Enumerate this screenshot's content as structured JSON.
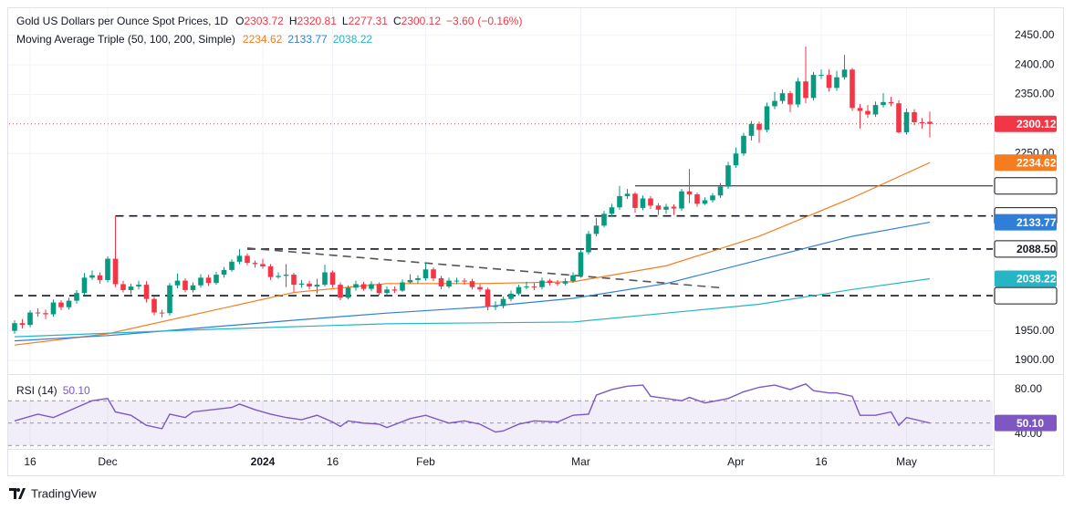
{
  "chart_data": {
    "type": "candlestick",
    "title": "Gold US Dollars per Ounce Spot Prices, 1D",
    "ohlc_prefixes": [
      "O",
      "H",
      "L",
      "C"
    ],
    "change": {
      "value": -3.6,
      "label": "−3.60"
    },
    "change_pct": {
      "value": -0.16,
      "label": "(−0.16%)"
    },
    "up_color": "#089981",
    "down_color": "#f23645",
    "categories": [
      null,
      null,
      "16",
      null,
      null,
      null,
      null,
      null,
      null,
      null,
      null,
      null,
      "Dec",
      null,
      null,
      null,
      null,
      null,
      null,
      null,
      null,
      null,
      null,
      null,
      null,
      null,
      null,
      null,
      null,
      null,
      null,
      null,
      "2024",
      null,
      null,
      null,
      null,
      null,
      null,
      null,
      null,
      "16",
      null,
      null,
      null,
      null,
      null,
      null,
      null,
      null,
      null,
      null,
      null,
      "Feb",
      null,
      null,
      null,
      null,
      null,
      null,
      null,
      null,
      null,
      null,
      null,
      null,
      null,
      null,
      null,
      null,
      null,
      null,
      null,
      "Mar",
      null,
      null,
      null,
      null,
      null,
      null,
      null,
      null,
      null,
      null,
      null,
      null,
      null,
      null,
      null,
      null,
      null,
      null,
      null,
      "Apr",
      null,
      null,
      null,
      null,
      null,
      null,
      null,
      null,
      null,
      null,
      "16",
      null,
      null,
      null,
      null,
      null,
      null,
      null,
      null,
      null,
      null,
      "May",
      null,
      null,
      null
    ],
    "open": [
      1950,
      1963,
      1960,
      1981,
      1980,
      1978,
      1998,
      1990,
      2001,
      2014,
      2040,
      2044,
      2036,
      2072,
      2029,
      2019,
      2025,
      2028,
      2004,
      1981,
      1980,
      2027,
      2035,
      2019,
      2027,
      2040,
      2031,
      2045,
      2053,
      2067,
      2077,
      2065,
      2063,
      2059,
      2041,
      2043,
      2045,
      2028,
      2030,
      2025,
      2028,
      2049,
      2028,
      2006,
      2023,
      2029,
      2021,
      2029,
      2014,
      2020,
      2018,
      2032,
      2036,
      2039,
      2054,
      2039,
      2025,
      2035,
      2035,
      2034,
      2024,
      2020,
      1992,
      1992,
      2004,
      2013,
      2024,
      2025,
      2024,
      2035,
      2031,
      2030,
      2034,
      2044,
      2083,
      2114,
      2128,
      2148,
      2159,
      2178,
      2182,
      2158,
      2174,
      2162,
      2155,
      2160,
      2157,
      2186,
      2181,
      2165,
      2171,
      2179,
      2194,
      2230,
      2250,
      2280,
      2300,
      2290,
      2330,
      2339,
      2352,
      2333,
      2372,
      2344,
      2383,
      2383,
      2361,
      2379,
      2392,
      2327,
      2322,
      2316,
      2332,
      2337,
      2335,
      2286,
      2320,
      2303,
      2303.72
    ],
    "high": [
      1968,
      1970,
      1985,
      1988,
      1986,
      2003,
      2002,
      2006,
      2019,
      2048,
      2052,
      2049,
      2076,
      2144.48,
      2035,
      2030,
      2035,
      2034,
      2008,
      1986,
      2031,
      2047,
      2039,
      2032,
      2046,
      2045,
      2050,
      2058,
      2071,
      2088.5,
      2081,
      2069,
      2072,
      2063,
      2049,
      2063,
      2048,
      2036,
      2035,
      2038,
      2062,
      2052,
      2032,
      2027,
      2035,
      2033,
      2034,
      2032,
      2025,
      2025,
      2037,
      2046,
      2044,
      2066,
      2057,
      2043,
      2040,
      2040,
      2039,
      2038,
      2029,
      2023,
      2000,
      2008,
      2018,
      2028,
      2033,
      2031,
      2040,
      2038,
      2036,
      2039,
      2049,
      2088,
      2119,
      2141,
      2153,
      2165,
      2195.19,
      2190,
      2185,
      2179,
      2178,
      2166,
      2165,
      2164,
      2190,
      2224,
      2184,
      2176,
      2183,
      2200,
      2236,
      2260,
      2285,
      2305,
      2304,
      2336,
      2354,
      2358,
      2356,
      2378,
      2431,
      2388,
      2392,
      2392,
      2390,
      2417,
      2395,
      2334,
      2332,
      2338,
      2352,
      2346,
      2340,
      2326,
      2325,
      2310,
      2320.81
    ],
    "low": [
      1945,
      1954,
      1956,
      1974,
      1970,
      1974,
      1985,
      1986,
      1996,
      2010,
      2036,
      2030,
      2032,
      2024,
      2015,
      2012,
      2020,
      1998,
      1976,
      1973,
      1976,
      2022,
      2015,
      2015,
      2023,
      2026,
      2028,
      2040,
      2050,
      2063,
      2061,
      2057,
      2055,
      2036,
      2038,
      2024,
      2016,
      2023,
      2020,
      2013,
      2025,
      2023,
      2002,
      2003,
      2018,
      2018,
      2017,
      2010,
      2010,
      2014,
      2016,
      2030,
      2030,
      2035,
      2034,
      2020,
      2022,
      2029,
      2028,
      2020,
      2016,
      1985,
      1985,
      1988,
      2000,
      2010,
      2020,
      2019,
      2020,
      2027,
      2026,
      2027,
      2031,
      2040,
      2079,
      2110,
      2125,
      2144,
      2155,
      2173,
      2150,
      2154,
      2156,
      2146,
      2148,
      2146,
      2153,
      2166,
      2160,
      2163,
      2167,
      2175,
      2190,
      2226,
      2246,
      2272,
      2268,
      2286,
      2325,
      2334,
      2320,
      2328,
      2335,
      2340,
      2376,
      2355,
      2356,
      2375,
      2322,
      2292,
      2310,
      2312,
      2328,
      2330,
      2284,
      2282,
      2298,
      2292,
      2277.31
    ],
    "close": [
      1963,
      1960,
      1981,
      1980,
      1978,
      1998,
      1990,
      2001,
      2014,
      2040,
      2044,
      2036,
      2072,
      2029,
      2019,
      2025,
      2028,
      2004,
      1981,
      1980,
      2027,
      2035,
      2019,
      2027,
      2040,
      2031,
      2045,
      2053,
      2067,
      2077,
      2065,
      2063,
      2059,
      2041,
      2043,
      2045,
      2028,
      2030,
      2025,
      2028,
      2049,
      2028,
      2006,
      2023,
      2029,
      2021,
      2029,
      2014,
      2020,
      2018,
      2032,
      2036,
      2039,
      2054,
      2039,
      2025,
      2035,
      2035,
      2034,
      2024,
      2020,
      1992,
      1992,
      2004,
      2013,
      2024,
      2025,
      2024,
      2035,
      2031,
      2030,
      2034,
      2044,
      2083,
      2114,
      2128,
      2148,
      2159,
      2178,
      2182,
      2158,
      2174,
      2162,
      2155,
      2160,
      2157,
      2186,
      2181,
      2165,
      2171,
      2179,
      2194,
      2230,
      2250,
      2280,
      2300,
      2290,
      2330,
      2339,
      2352,
      2333,
      2372,
      2344,
      2383,
      2383,
      2361,
      2379,
      2392,
      2327,
      2322,
      2316,
      2332,
      2337,
      2335,
      2286,
      2320,
      2303,
      2301,
      2300.12
    ],
    "ylim": [
      1880,
      2502
    ],
    "yticks": [
      {
        "value": 1900,
        "label": "1900.00"
      },
      {
        "value": 1950,
        "label": "1950.00"
      },
      {
        "value": 2250,
        "label": "2250.00"
      },
      {
        "value": 2350,
        "label": "2350.00"
      },
      {
        "value": 2400,
        "label": "2400.00"
      },
      {
        "value": 2450,
        "label": "2450.00"
      }
    ],
    "moving_averages": {
      "title": "Moving Average Triple (50, 100, 200, Simple)",
      "series": [
        {
          "color": "#f57c1f",
          "x": [
            0,
            12,
            24,
            36,
            48,
            60,
            72,
            84,
            96,
            108,
            118
          ],
          "values": [
            1926,
            1945,
            1980,
            2015,
            2030,
            2030,
            2033,
            2060,
            2110,
            2175,
            2234.62
          ]
        },
        {
          "color": "#2f7fd8",
          "x": [
            0,
            12,
            24,
            36,
            48,
            60,
            72,
            84,
            96,
            108,
            118
          ],
          "values": [
            1933,
            1942,
            1955,
            1968,
            1980,
            1990,
            2005,
            2030,
            2070,
            2110,
            2133.77
          ]
        },
        {
          "color": "#26b5c5",
          "x": [
            0,
            24,
            48,
            72,
            96,
            108,
            118
          ],
          "values": [
            1940,
            1952,
            1962,
            1965,
            1995,
            2020,
            2038.22
          ]
        }
      ]
    },
    "levels": [
      {
        "value": 2195.19,
        "start": 80,
        "dashed": false
      },
      {
        "value": 2144.48,
        "start": 13,
        "dashed": true
      },
      {
        "value": 2088.5,
        "label": "2088.50",
        "start": 30,
        "dashed": true
      },
      {
        "value": 2009.49,
        "start": 0,
        "dashed": true
      }
    ],
    "trendline": {
      "x": [
        30,
        91
      ],
      "values": [
        2090,
        2023
      ]
    },
    "rsi": {
      "title": "RSI (14)",
      "color": "#7e57c2",
      "x": [
        0,
        3,
        5,
        9,
        10,
        12,
        13,
        15,
        17,
        19,
        20,
        22,
        23,
        28,
        29,
        31,
        33,
        35,
        37,
        39,
        41,
        42,
        43,
        45,
        47,
        48,
        51,
        53,
        56,
        58,
        60,
        62,
        63,
        65,
        67,
        70,
        72,
        74,
        75,
        77,
        79,
        81,
        82,
        84,
        86,
        87,
        89,
        92,
        94,
        96,
        98,
        100,
        102,
        103,
        105,
        106,
        108,
        109,
        111,
        113,
        114,
        115,
        118
      ],
      "values": [
        52,
        58,
        55,
        67,
        70,
        72,
        60,
        57,
        48,
        45,
        58,
        55,
        60,
        64,
        67,
        62,
        58,
        55,
        53,
        57,
        51,
        47,
        52,
        50,
        49,
        46,
        54,
        57,
        50,
        52,
        49,
        42,
        43,
        49,
        52,
        51,
        57,
        58,
        75,
        80,
        83,
        84,
        74,
        72,
        70,
        73,
        68,
        72,
        78,
        82,
        84,
        80,
        85,
        79,
        77,
        77,
        74,
        57,
        57,
        60,
        48,
        55,
        50.1
      ],
      "current_label": "50.10",
      "ylim": [
        28.6,
        92.2
      ],
      "yticks": [
        {
          "value": 80,
          "label": "80.00"
        },
        {
          "value": 40,
          "label": "40.00"
        }
      ],
      "bands": [
        30,
        70
      ],
      "mid": 50
    },
    "footer": "TradingView"
  }
}
